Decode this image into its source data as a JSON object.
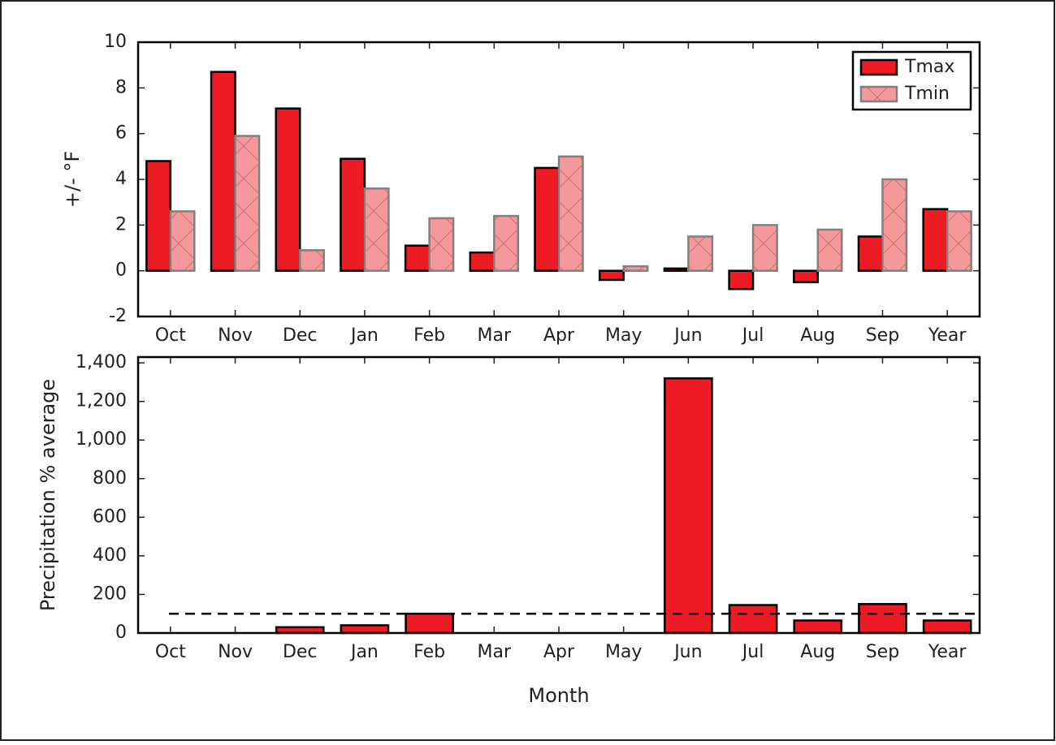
{
  "chart_data": [
    {
      "type": "bar",
      "ylabel": "+/- °F",
      "categories": [
        "Oct",
        "Nov",
        "Dec",
        "Jan",
        "Feb",
        "Mar",
        "Apr",
        "May",
        "Jun",
        "Jul",
        "Aug",
        "Sep",
        "Year"
      ],
      "series": [
        {
          "name": "Tmax",
          "color": "#ed1c24",
          "values": [
            4.8,
            8.7,
            7.1,
            4.9,
            1.1,
            0.8,
            4.5,
            -0.4,
            0.1,
            -0.8,
            -0.5,
            1.5,
            2.7
          ]
        },
        {
          "name": "Tmin",
          "color": "#f4989b",
          "values": [
            2.6,
            5.9,
            0.9,
            3.6,
            2.3,
            2.4,
            5.0,
            0.2,
            1.5,
            2.0,
            1.8,
            4.0,
            2.6
          ]
        }
      ],
      "ylim": [
        -2,
        10
      ],
      "yticks": [
        -2,
        0,
        2,
        4,
        6,
        8,
        10
      ],
      "legend": "upper right",
      "grid": false
    },
    {
      "type": "bar",
      "ylabel": "Precipitation % average",
      "xlabel": "Month",
      "categories": [
        "Oct",
        "Nov",
        "Dec",
        "Jan",
        "Feb",
        "Mar",
        "Apr",
        "May",
        "Jun",
        "Jul",
        "Aug",
        "Sep",
        "Year"
      ],
      "values": [
        0,
        0,
        30,
        40,
        100,
        0,
        0,
        0,
        1320,
        145,
        65,
        150,
        65
      ],
      "color": "#ed1c24",
      "reference_line": 100,
      "ylim": [
        0,
        1430
      ],
      "yticks": [
        0,
        200,
        400,
        600,
        800,
        {
          "value": 1000,
          "label": "1,000"
        },
        {
          "value": 1200,
          "label": "1,200"
        },
        {
          "value": 1400,
          "label": "1,400"
        }
      ],
      "grid": false
    }
  ]
}
